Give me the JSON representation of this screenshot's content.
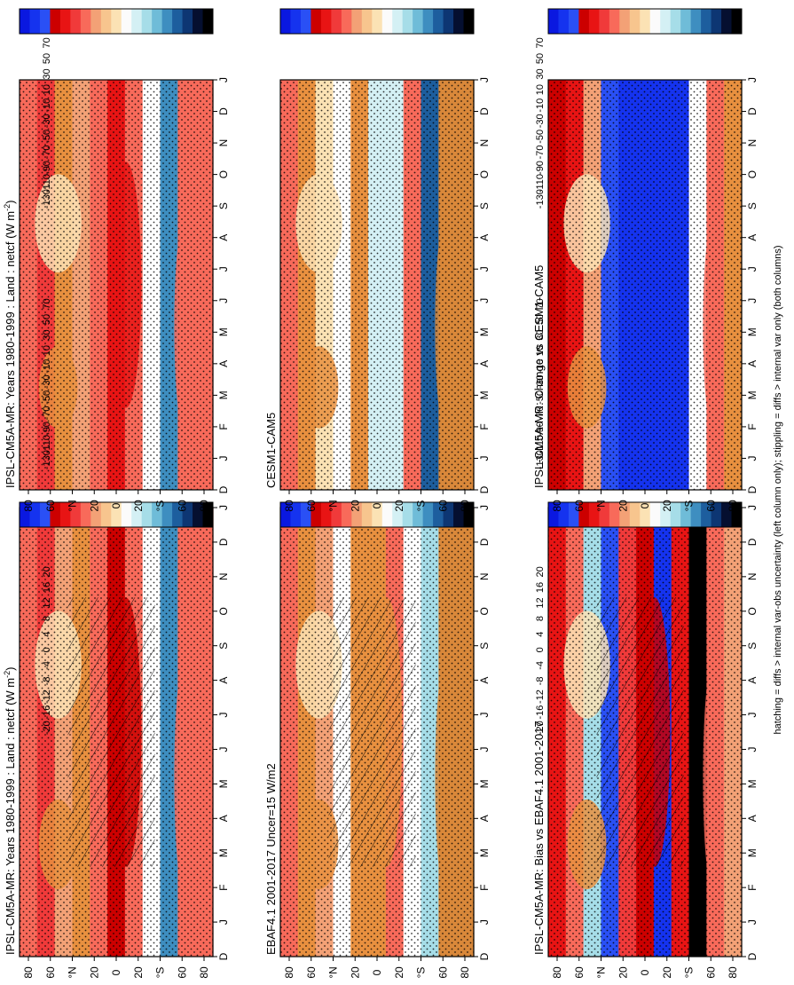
{
  "page": {
    "footnote": "hatching = diffs > internal var-obs uncertainty (left column only); stippling = diffs > internal var only (both columns)"
  },
  "colorbars": {
    "mean": {
      "labels": [
        "70",
        "50",
        "30",
        "10",
        "-10",
        "-30",
        "-50",
        "-70",
        "-90",
        "-110",
        "-130"
      ],
      "colors": [
        "#0a18e0",
        "#1533ef",
        "#2a50f5",
        "#cc0000",
        "#e81414",
        "#f03a3a",
        "#f86a5a",
        "#f3a176",
        "#f7c58e",
        "#fbe2b4",
        "#fbfbfb",
        "#d4f0f4",
        "#a6dde8",
        "#6fbcd8",
        "#3e8ec0",
        "#1d5e9e",
        "#0d3673",
        "#050f30",
        "#000000"
      ]
    },
    "diff": {
      "labels": [
        "20",
        "16",
        "12",
        "8",
        "4",
        "0",
        "-4",
        "-8",
        "-12",
        "-16",
        "-20"
      ],
      "colors": [
        "#0a18e0",
        "#1533ef",
        "#2a50f5",
        "#cc0000",
        "#e81414",
        "#f03a3a",
        "#f86a5a",
        "#f3a176",
        "#f7c58e",
        "#fbe2b4",
        "#fbfbfb",
        "#d4f0f4",
        "#a6dde8",
        "#6fbcd8",
        "#3e8ec0",
        "#1d5e9e",
        "#0d3673",
        "#050f30",
        "#000000"
      ]
    }
  },
  "chart_data": [
    {
      "type": "heatmap",
      "panel": "top-left",
      "title": "IPSL-CM5A-MR: Years 1980-1999 : Land : netcf (W m",
      "title_sup": "-2",
      "title_end": ")",
      "x_ticks": [
        "D",
        "J",
        "F",
        "M",
        "A",
        "M",
        "J",
        "J",
        "A",
        "S",
        "O",
        "N",
        "D",
        "J"
      ],
      "y_ticks": [
        "80",
        "60",
        "°N",
        "20",
        "0",
        "20",
        "°S",
        "60",
        "80"
      ],
      "colorbar": "mean",
      "hatching": true,
      "stippling": true
    },
    {
      "type": "heatmap",
      "panel": "top-right",
      "title": "IPSL-CM5A-MR: Years 1980-1999 : Land : netcf (W m",
      "title_sup": "-2",
      "title_end": ")",
      "x_ticks": [
        "D",
        "J",
        "F",
        "M",
        "A",
        "M",
        "J",
        "J",
        "A",
        "S",
        "O",
        "N",
        "D",
        "J"
      ],
      "y_ticks": [
        "80",
        "60",
        "°N",
        "20",
        "0",
        "20",
        "°S",
        "60",
        "80"
      ],
      "colorbar": "mean",
      "hatching": false,
      "stippling": true
    },
    {
      "type": "heatmap",
      "panel": "middle-left",
      "title": "EBAF4.1 2001-2017 Uncer=15 W/m2",
      "x_ticks": [
        "D",
        "J",
        "F",
        "M",
        "A",
        "M",
        "J",
        "J",
        "A",
        "S",
        "O",
        "N",
        "D",
        "J"
      ],
      "y_ticks": [
        "80",
        "60",
        "°N",
        "20",
        "0",
        "20",
        "°S",
        "60",
        "80"
      ],
      "colorbar": "mean",
      "hatching": true,
      "stippling": true
    },
    {
      "type": "heatmap",
      "panel": "middle-right",
      "title": "CESM1-CAM5",
      "x_ticks": [
        "D",
        "J",
        "F",
        "M",
        "A",
        "M",
        "J",
        "J",
        "A",
        "S",
        "O",
        "N",
        "D",
        "J"
      ],
      "y_ticks": [
        "80",
        "60",
        "°N",
        "20",
        "0",
        "20",
        "°S",
        "60",
        "80"
      ],
      "colorbar": "mean",
      "hatching": false,
      "stippling": true
    },
    {
      "type": "heatmap",
      "panel": "bottom-left",
      "title": "IPSL-CM5A-MR: Bias vs EBAF4.1 2001-2017",
      "x_ticks": [
        "D",
        "J",
        "F",
        "M",
        "A",
        "M",
        "J",
        "J",
        "A",
        "S",
        "O",
        "N",
        "D",
        "J"
      ],
      "y_ticks": [
        "80",
        "60",
        "°N",
        "20",
        "0",
        "20",
        "°S",
        "60",
        "80"
      ],
      "colorbar": "diff",
      "hatching": true,
      "stippling": true
    },
    {
      "type": "heatmap",
      "panel": "bottom-right",
      "title": "IPSL-CM5A-MR: Change vs CESM1-CAM5",
      "x_ticks": [
        "D",
        "J",
        "F",
        "M",
        "A",
        "M",
        "J",
        "J",
        "A",
        "S",
        "O",
        "N",
        "D",
        "J"
      ],
      "y_ticks": [
        "80",
        "60",
        "°N",
        "20",
        "0",
        "20",
        "°S",
        "60",
        "80"
      ],
      "colorbar": "diff",
      "hatching": false,
      "stippling": true
    }
  ]
}
